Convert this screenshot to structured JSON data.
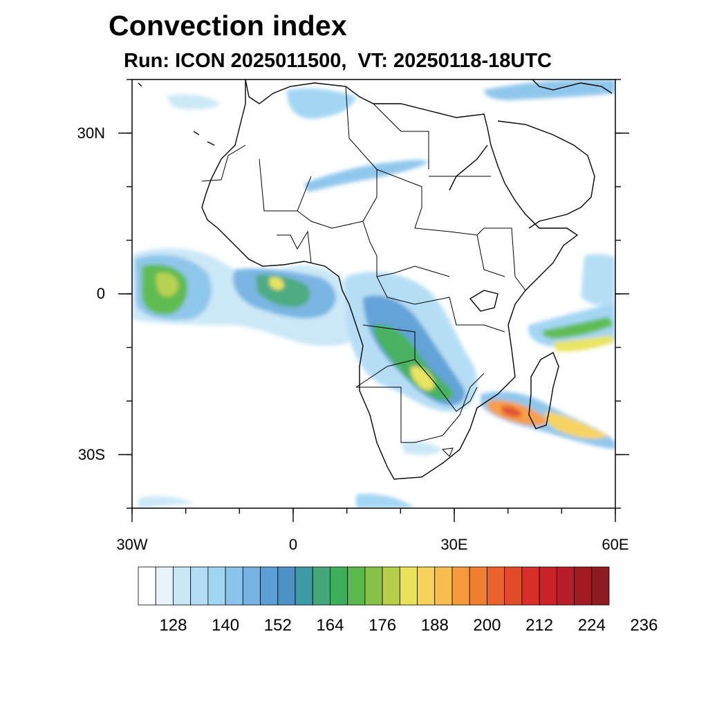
{
  "title": "Convection index",
  "subtitle": "Run: ICON 2025011500,  VT: 20250118-18UTC",
  "map": {
    "projection": "equirectangular",
    "lon_range": [
      -30,
      60
    ],
    "lat_range": [
      -40,
      40
    ],
    "lat_ticks": [
      {
        "value": 30,
        "label": "30N"
      },
      {
        "value": 0,
        "label": "0"
      },
      {
        "value": -30,
        "label": "30S"
      }
    ],
    "lon_ticks": [
      {
        "value": -30,
        "label": "30W"
      },
      {
        "value": 0,
        "label": "0"
      },
      {
        "value": 30,
        "label": "30E"
      },
      {
        "value": 60,
        "label": "60E"
      }
    ],
    "features": [
      "coastlines",
      "country-borders",
      "filled-contours"
    ]
  },
  "colorbar": {
    "labels": [
      "128",
      "140",
      "152",
      "164",
      "176",
      "188",
      "200",
      "212",
      "224",
      "236"
    ],
    "colors": [
      "#ffffff",
      "#e8f4fb",
      "#c9e7f7",
      "#b2ddf5",
      "#9fd4f3",
      "#8ac4ea",
      "#73b2e2",
      "#5b9fd6",
      "#4e92c4",
      "#3e9aa3",
      "#44a77c",
      "#3fae5a",
      "#59b94a",
      "#88c148",
      "#b6cf4a",
      "#e8e35a",
      "#f6d25a",
      "#f8bd4e",
      "#f59a3c",
      "#f07f32",
      "#ea622c",
      "#e34a29",
      "#d92f2a",
      "#c92228",
      "#b81c27",
      "#a31b22",
      "#8e1b1f"
    ]
  }
}
